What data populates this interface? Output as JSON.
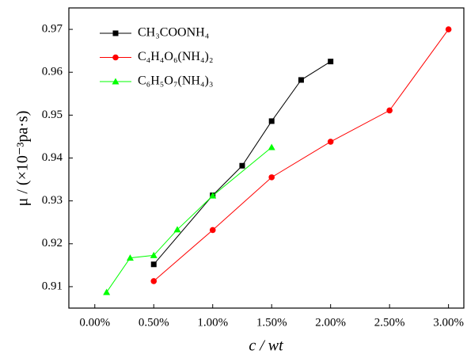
{
  "chart_data": {
    "type": "line",
    "xlabel": "c / wt",
    "ylabel": "μ / (×10⁻³pa·s)",
    "xlim": [
      -0.22,
      3.13
    ],
    "xticks": [
      {
        "value": 0,
        "label": "0.00%"
      },
      {
        "value": 0.5,
        "label": "0.50%"
      },
      {
        "value": 1,
        "label": "1.00%"
      },
      {
        "value": 1.5,
        "label": "1.50%"
      },
      {
        "value": 2,
        "label": "2.00%"
      },
      {
        "value": 2.5,
        "label": "2.50%"
      },
      {
        "value": 3,
        "label": "3.00%"
      }
    ],
    "ylim": [
      0.905,
      0.975
    ],
    "yticks": [
      0.91,
      0.92,
      0.93,
      0.94,
      0.95,
      0.96,
      0.97
    ],
    "legend": "upper left",
    "series": [
      {
        "name": "CH₃COONH₄",
        "color": "#000000",
        "marker": "square",
        "x": [
          0.5,
          1,
          1.25,
          1.5,
          1.75,
          2
        ],
        "values": [
          0.9152,
          0.9313,
          0.9382,
          0.9486,
          0.9582,
          0.9625
        ]
      },
      {
        "name": "C₄H₄O₆(NH₄)₂",
        "color": "#ff0000",
        "marker": "circle",
        "x": [
          0.5,
          1,
          1.5,
          2,
          2.5,
          3
        ],
        "values": [
          0.9113,
          0.9232,
          0.9355,
          0.9438,
          0.9511,
          0.97
        ]
      },
      {
        "name": "C₆H₅O₇(NH₄)₃",
        "color": "#00ff00",
        "marker": "triangle",
        "x": [
          0.1,
          0.3,
          0.5,
          0.7,
          1,
          1.5
        ],
        "values": [
          0.9087,
          0.9167,
          0.9173,
          0.9233,
          0.9312,
          0.9425
        ]
      }
    ]
  }
}
